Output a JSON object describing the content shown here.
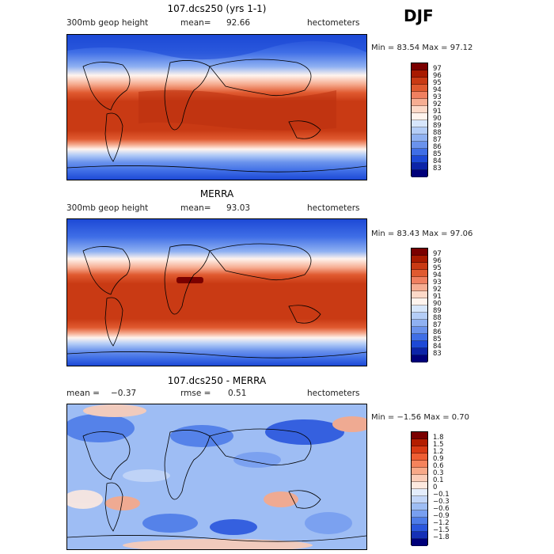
{
  "season": "DJF",
  "panels": [
    {
      "title": "107.dcs250 (yrs 1-1)",
      "left_label": "300mb geop height",
      "stat1_label": "mean=",
      "stat1_value": "92.66",
      "stat2_label": "",
      "stat2_value": "",
      "units": "hectometers",
      "min_label": "Min =",
      "min_value": "83.54",
      "max_label": "Max =",
      "max_value": "97.12",
      "colorbar_labels": [
        "97",
        "96",
        "95",
        "94",
        "93",
        "92",
        "91",
        "90",
        "89",
        "88",
        "87",
        "86",
        "85",
        "84",
        "83"
      ]
    },
    {
      "title": "MERRA",
      "left_label": "300mb geop height",
      "stat1_label": "mean=",
      "stat1_value": "93.03",
      "stat2_label": "",
      "stat2_value": "",
      "units": "hectometers",
      "min_label": "Min =",
      "min_value": "83.43",
      "max_label": "Max =",
      "max_value": "97.06",
      "colorbar_labels": [
        "97",
        "96",
        "95",
        "94",
        "93",
        "92",
        "91",
        "90",
        "89",
        "88",
        "87",
        "86",
        "85",
        "84",
        "83"
      ]
    },
    {
      "title": "107.dcs250 - MERRA",
      "left_label": "",
      "stat1_label": "mean =",
      "stat1_value": "−0.37",
      "stat2_label": "rmse =",
      "stat2_value": "0.51",
      "units": "hectometers",
      "min_label": "Min =",
      "min_value": "−1.56",
      "max_label": "Max =",
      "max_value": "0.70",
      "colorbar_labels": [
        "1.8",
        "1.5",
        "1.2",
        "0.9",
        "0.6",
        "0.3",
        "0.1",
        "0",
        "−0.1",
        "−0.3",
        "−0.6",
        "−0.9",
        "−1.2",
        "−1.5",
        "−1.8"
      ]
    }
  ],
  "colors": {
    "field_scale": [
      "#7a0000",
      "#a81a00",
      "#c93a14",
      "#e05a30",
      "#f08060",
      "#f6ad92",
      "#fcd9c8",
      "#fff4ee",
      "#d7e6fb",
      "#b4cdf7",
      "#8fb1f2",
      "#6a92ec",
      "#3f6ee6",
      "#1d49d6",
      "#0c24a8",
      "#00007a"
    ],
    "diff_scale": [
      "#7a0000",
      "#b31d00",
      "#d83a14",
      "#ee5e33",
      "#f5835c",
      "#f8a988",
      "#fbcdb8",
      "#fde9df",
      "#e4edfb",
      "#c3d6f8",
      "#9ebdf4",
      "#789ff0",
      "#4e7ce8",
      "#2a56dd",
      "#1530b6",
      "#00007a"
    ]
  }
}
